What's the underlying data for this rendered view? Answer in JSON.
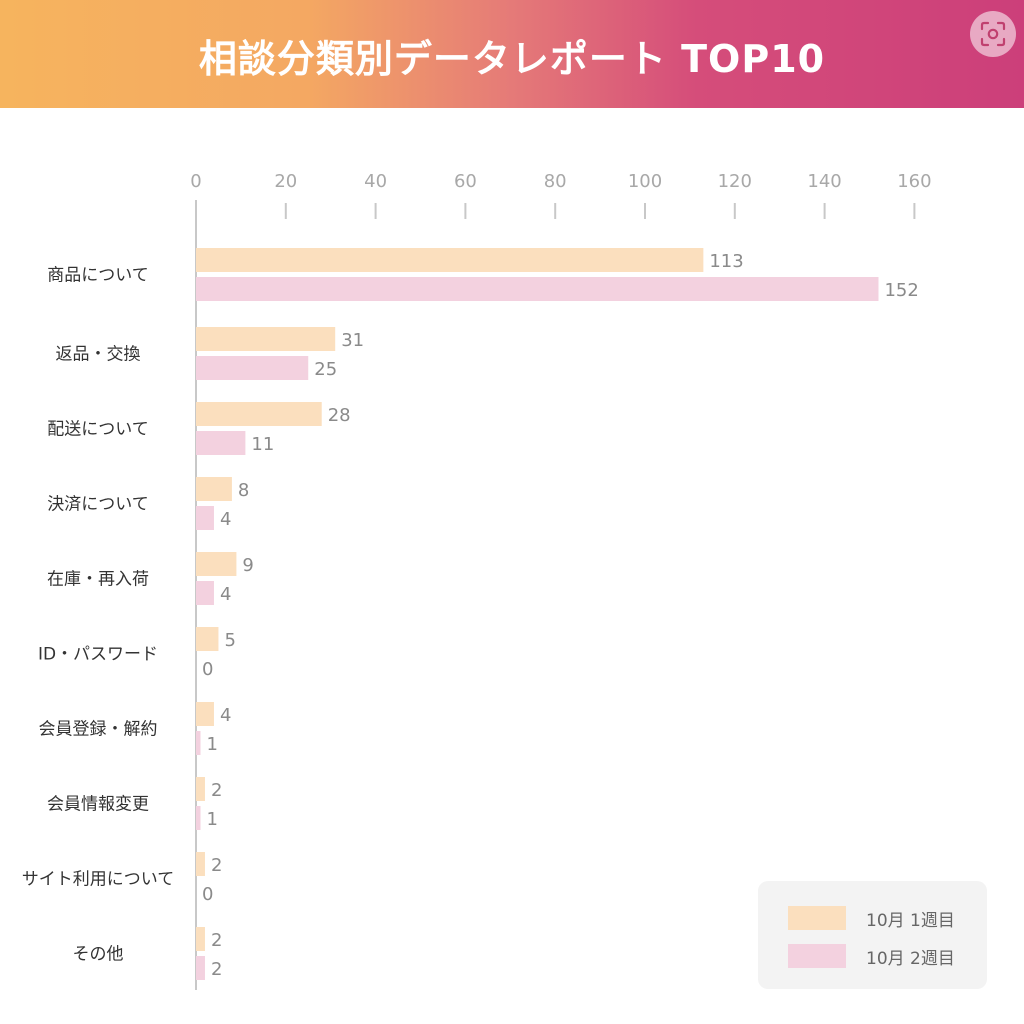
{
  "header": {
    "title": "相談分類別データレポート TOP10",
    "scan_icon": "scan-icon"
  },
  "colors": {
    "series1": "#fbdfbe",
    "series2": "#f3d1df",
    "axis": "#c8c8c8"
  },
  "chart_data": {
    "type": "bar",
    "orientation": "horizontal",
    "title": "相談分類別データレポート TOP10",
    "xlabel": "",
    "ylabel": "",
    "xlim": [
      0,
      160
    ],
    "xticks": [
      0,
      20,
      40,
      60,
      80,
      100,
      120,
      140,
      160
    ],
    "grid": false,
    "legend_position": "bottom-right",
    "categories": [
      "商品について",
      "返品・交換",
      "配送について",
      "決済について",
      "在庫・再入荷",
      "ID・パスワード",
      "会員登録・解約",
      "会員情報変更",
      "サイト利用について",
      "その他"
    ],
    "series": [
      {
        "name": "10月 1週目",
        "values": [
          113,
          31,
          28,
          8,
          9,
          5,
          4,
          2,
          2,
          2
        ]
      },
      {
        "name": "10月 2週目",
        "values": [
          152,
          25,
          11,
          4,
          4,
          0,
          1,
          1,
          0,
          2
        ]
      }
    ]
  }
}
